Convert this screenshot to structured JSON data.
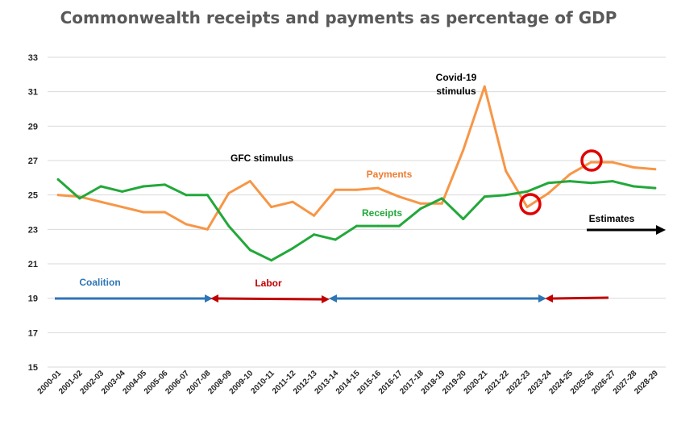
{
  "chart_data": {
    "type": "line",
    "title": "Commonwealth receipts and payments as percentage of GDP",
    "xlabel": "",
    "ylabel": "",
    "ylim": [
      15,
      33
    ],
    "yticks": [
      15,
      17,
      19,
      21,
      23,
      25,
      27,
      29,
      31,
      33
    ],
    "grid": true,
    "categories": [
      "2000-01",
      "2001-02",
      "2002-03",
      "2003-04",
      "2004-05",
      "2005-06",
      "2006-07",
      "2007-08",
      "2008-09",
      "2009-10",
      "2010-11",
      "2011-12",
      "2012-13",
      "2013-14",
      "2014-15",
      "2015-16",
      "2016-17",
      "2017-18",
      "2018-19",
      "2019-20",
      "2020-21",
      "2021-22",
      "2022-23",
      "2023-24",
      "2024-25",
      "2025-26",
      "2026-27",
      "2027-28",
      "2028-29"
    ],
    "series": [
      {
        "name": "Payments",
        "color": "#F79646",
        "values": [
          25.0,
          24.9,
          24.6,
          24.3,
          24.0,
          24.0,
          23.3,
          23.0,
          25.1,
          25.8,
          24.3,
          24.6,
          23.8,
          25.3,
          25.3,
          25.4,
          24.9,
          24.5,
          24.5,
          27.6,
          31.3,
          26.4,
          24.3,
          25.1,
          26.2,
          26.9,
          26.9,
          26.6,
          26.5
        ]
      },
      {
        "name": "Receipts",
        "color": "#22A83A",
        "values": [
          25.9,
          24.8,
          25.5,
          25.2,
          25.5,
          25.6,
          25.0,
          25.0,
          23.2,
          21.8,
          21.2,
          21.9,
          22.7,
          22.4,
          23.2,
          23.2,
          23.2,
          24.2,
          24.8,
          23.6,
          24.9,
          25.0,
          25.2,
          25.7,
          25.8,
          25.7,
          25.8,
          25.5,
          25.4
        ]
      }
    ],
    "annotations": [
      {
        "text": "GFC stimulus",
        "color": "#000000"
      },
      {
        "text": "Payments",
        "color": "#ED7D31"
      },
      {
        "text": "Receipts",
        "color": "#22A83A"
      },
      {
        "text": "Covid-19",
        "color": "#000000"
      },
      {
        "text": "stimulus",
        "color": "#000000"
      },
      {
        "text": "Estimates",
        "color": "#000000"
      },
      {
        "text": "Coalition",
        "color": "#2E75B6"
      },
      {
        "text": "Labor",
        "color": "#C00000"
      }
    ]
  }
}
